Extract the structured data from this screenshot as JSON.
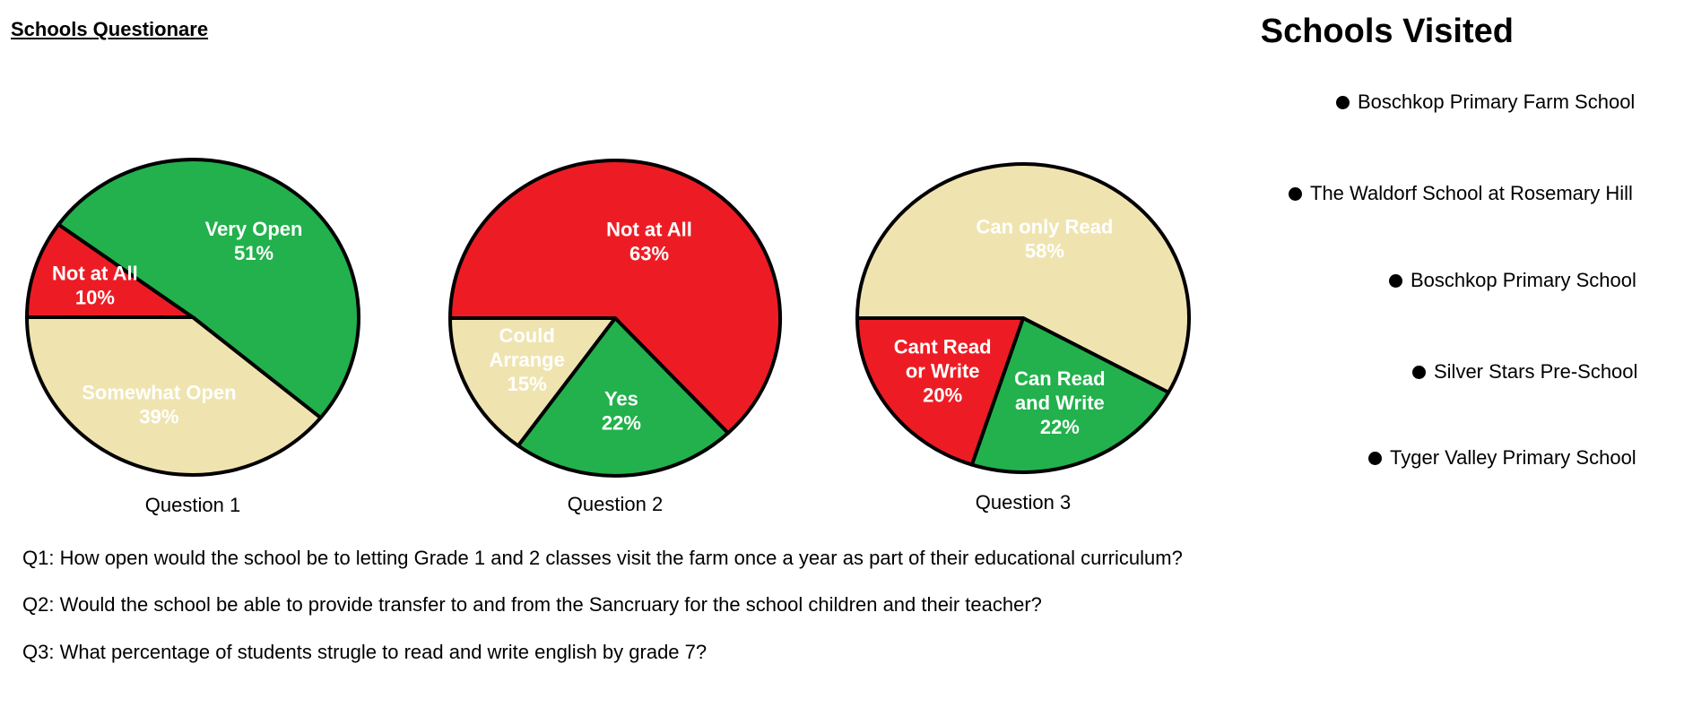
{
  "page": {
    "title": "Schools Questionare"
  },
  "schools": {
    "title": "Schools Visited",
    "items": [
      "Boschkop Primary Farm School",
      "The Waldorf School at Rosemary Hill",
      "Boschkop Primary School",
      "Silver Stars Pre-School",
      "Tyger Valley Primary School"
    ]
  },
  "questions": [
    "Q1: How open would the school be to letting Grade 1 and 2 classes visit the farm once a year as part of their educational curriculum?",
    "Q2: Would the school be able to provide transfer to and from the Sancruary for the school children and their teacher?",
    "Q3: What percentage of students strugle to read and write english by grade 7?"
  ],
  "colors": {
    "green": "#22B14C",
    "red": "#ED1C24",
    "beige": "#EFE4B0",
    "outline": "#000000",
    "label_light": "#FFFFFF"
  },
  "chart_data": [
    {
      "type": "pie",
      "title": "Question 1",
      "slices": [
        {
          "label": [
            "Very Open"
          ],
          "value": 51,
          "pct_text": "51%",
          "color": "#22B14C"
        },
        {
          "label": [
            "Somewhat Open"
          ],
          "value": 39,
          "pct_text": "39%",
          "color": "#EFE4B0"
        },
        {
          "label": [
            "Not at All"
          ],
          "value": 10,
          "pct_text": "10%",
          "color": "#ED1C24"
        }
      ]
    },
    {
      "type": "pie",
      "title": "Question 2",
      "slices": [
        {
          "label": [
            "Not at All"
          ],
          "value": 63,
          "pct_text": "63%",
          "color": "#ED1C24"
        },
        {
          "label": [
            "Yes"
          ],
          "value": 22,
          "pct_text": "22%",
          "color": "#22B14C"
        },
        {
          "label": [
            "Could",
            "Arrange"
          ],
          "value": 15,
          "pct_text": "15%",
          "color": "#EFE4B0"
        }
      ]
    },
    {
      "type": "pie",
      "title": "Question 3",
      "slices": [
        {
          "label": [
            "Can only Read"
          ],
          "value": 58,
          "pct_text": "58%",
          "color": "#EFE4B0"
        },
        {
          "label": [
            "Can Read",
            "and Write"
          ],
          "value": 22,
          "pct_text": "22%",
          "color": "#22B14C"
        },
        {
          "label": [
            "Cant Read",
            "or Write"
          ],
          "value": 20,
          "pct_text": "20%",
          "color": "#ED1C24"
        }
      ]
    }
  ]
}
